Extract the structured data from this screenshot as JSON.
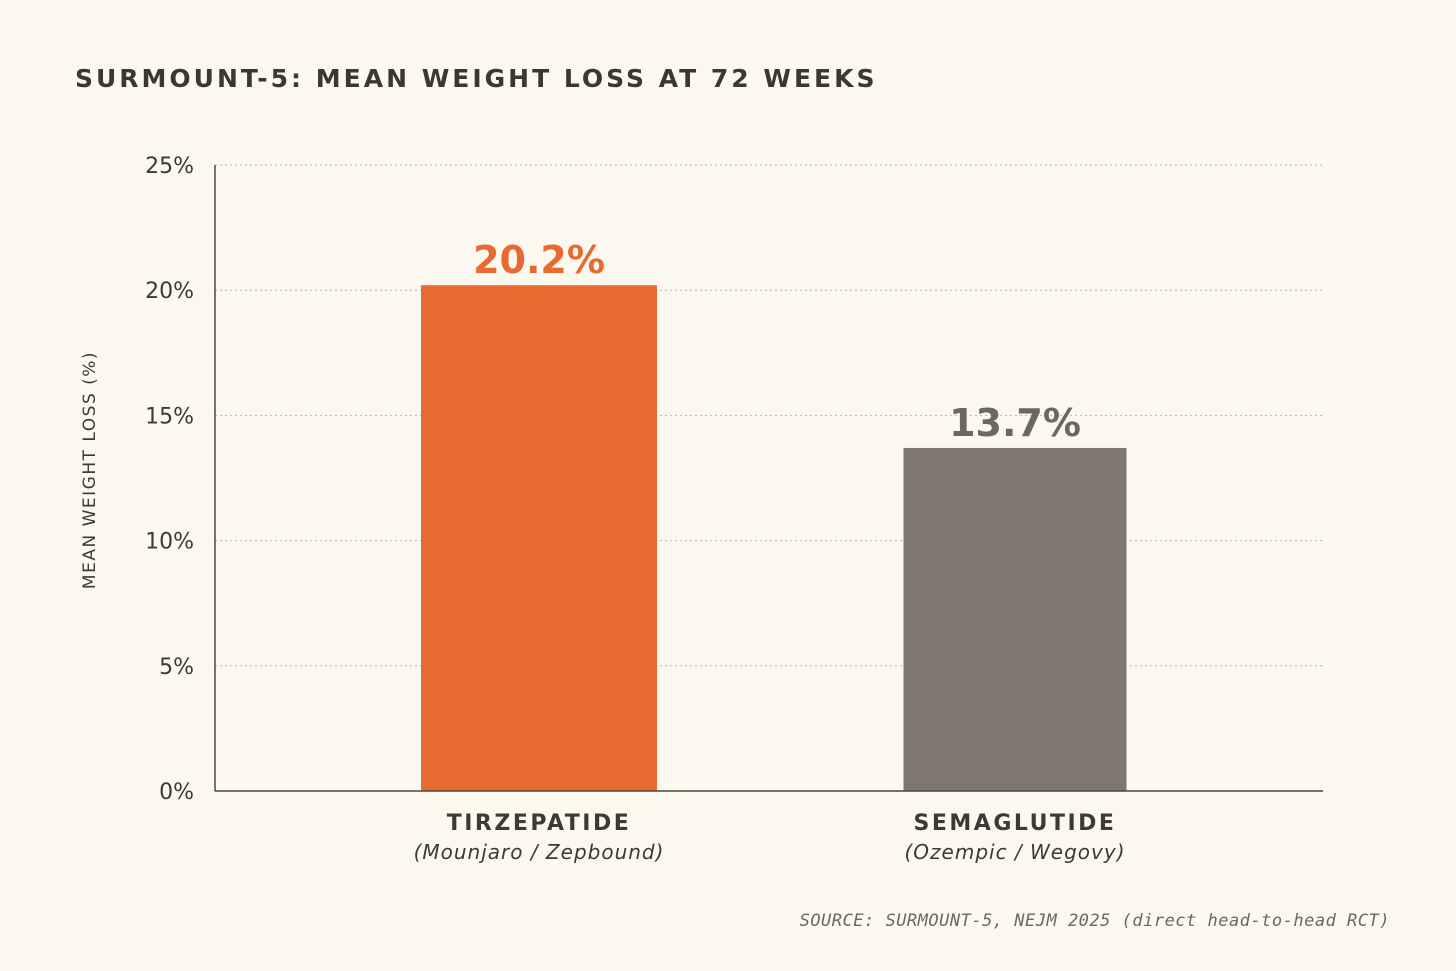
{
  "chart_data": {
    "type": "bar",
    "title": "SURMOUNT-5: MEAN WEIGHT LOSS AT 72 WEEKS",
    "ylabel": "MEAN WEIGHT LOSS (%)",
    "xlabel": "",
    "ylim": [
      0,
      25
    ],
    "yticks": [
      {
        "value": 0,
        "label": "0%"
      },
      {
        "value": 5,
        "label": "5%"
      },
      {
        "value": 10,
        "label": "10%"
      },
      {
        "value": 15,
        "label": "15%"
      },
      {
        "value": 20,
        "label": "20%"
      },
      {
        "value": 25,
        "label": "25%"
      }
    ],
    "grid": true,
    "legend": "none",
    "categories": [
      {
        "name": "TIRZEPATIDE",
        "subtitle": "(Mounjaro / Zepbound)",
        "value": 20.2,
        "value_label": "20.2%",
        "color": "#ea6a34",
        "label_color": "#e86a33"
      },
      {
        "name": "SEMAGLUTIDE",
        "subtitle": "(Ozempic / Wegovy)",
        "value": 13.7,
        "value_label": "13.7%",
        "color": "#7e776e",
        "label_color": "#6c6761"
      }
    ],
    "source": "SOURCE: SURMOUNT-5, NEJM 2025 (direct head-to-head RCT)"
  }
}
